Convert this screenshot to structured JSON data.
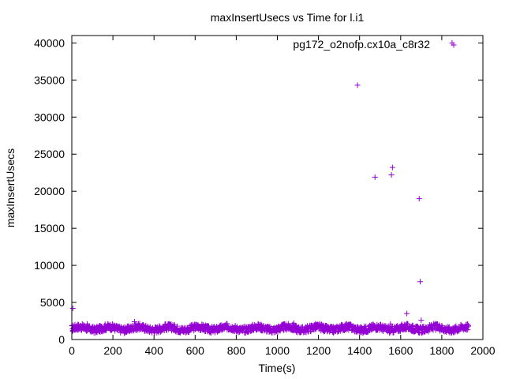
{
  "chart_data": {
    "type": "scatter",
    "title": "maxInsertUsecs vs Time for l.i1",
    "xlabel": "Time(s)",
    "ylabel": "maxInsertUsecs",
    "xlim": [
      0,
      2000
    ],
    "ylim": [
      0,
      41000
    ],
    "xticks": [
      0,
      200,
      400,
      600,
      800,
      1000,
      1200,
      1400,
      1600,
      1800,
      2000
    ],
    "yticks": [
      0,
      5000,
      10000,
      15000,
      20000,
      25000,
      30000,
      35000,
      40000
    ],
    "grid": false,
    "marker": "+",
    "color": "#9400d3",
    "legend_position": "top-right",
    "series": [
      {
        "name": "pg172_o2nofp.cx10a_c8r32",
        "baseline_band": {
          "x_range": [
            0,
            1930
          ],
          "y_typical": [
            1000,
            2000
          ]
        },
        "points": [
          {
            "x": 5,
            "y": 4200
          },
          {
            "x": 75,
            "y": 2100
          },
          {
            "x": 305,
            "y": 2400
          },
          {
            "x": 1080,
            "y": 2200
          },
          {
            "x": 1390,
            "y": 34300
          },
          {
            "x": 1475,
            "y": 21900
          },
          {
            "x": 1550,
            "y": 2100
          },
          {
            "x": 1555,
            "y": 22200
          },
          {
            "x": 1560,
            "y": 23200
          },
          {
            "x": 1630,
            "y": 3500
          },
          {
            "x": 1690,
            "y": 19000
          },
          {
            "x": 1695,
            "y": 7800
          },
          {
            "x": 1700,
            "y": 2600
          },
          {
            "x": 1850,
            "y": 40000
          }
        ]
      }
    ]
  }
}
